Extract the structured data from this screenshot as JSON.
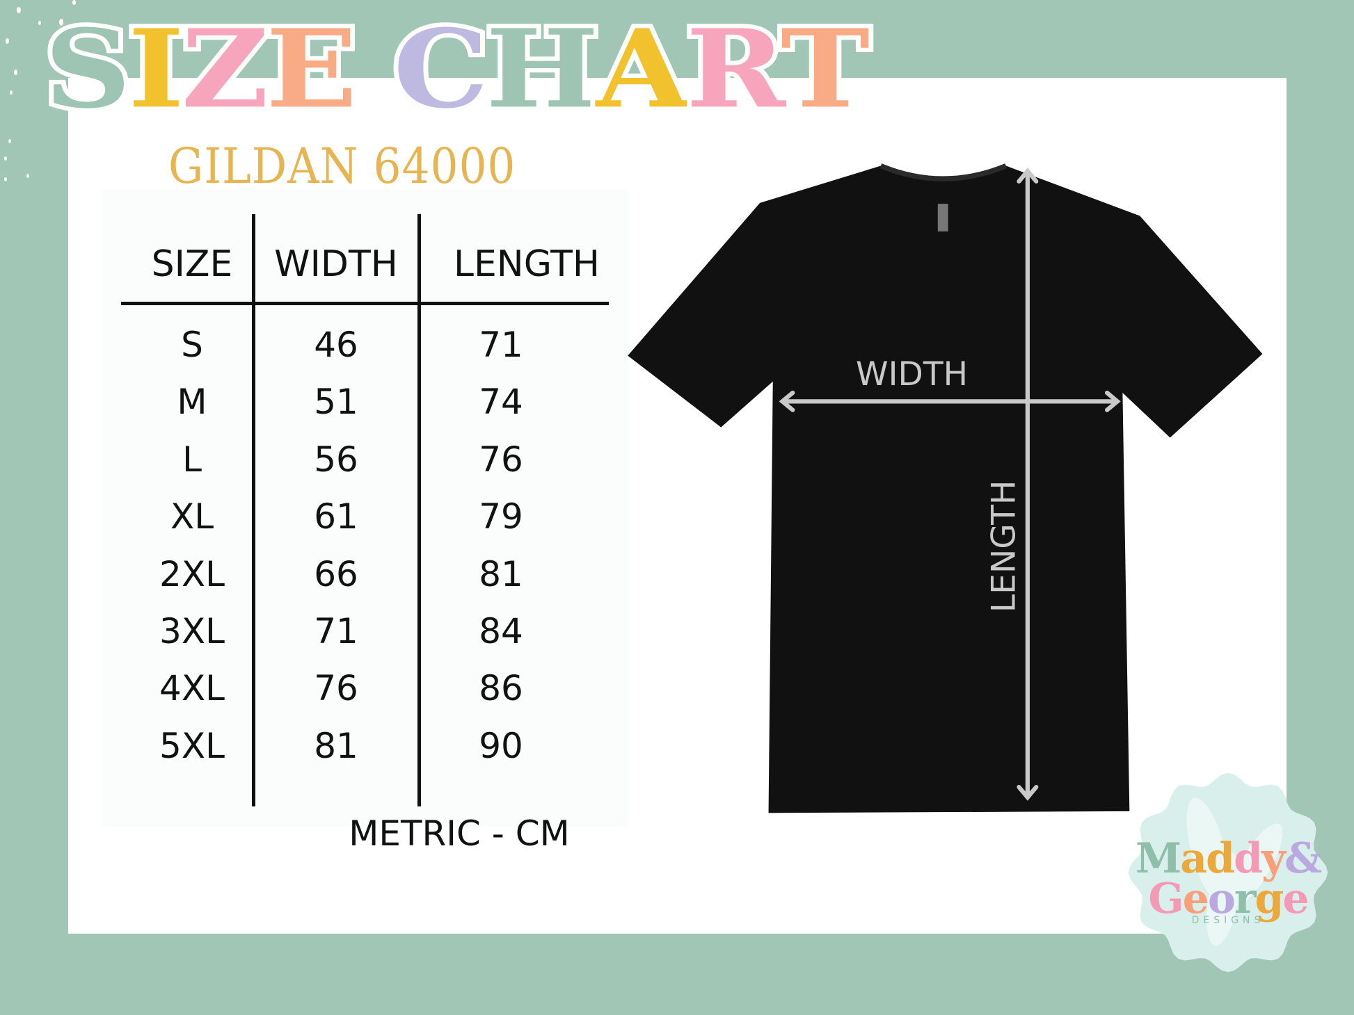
{
  "title": "SIZE CHART",
  "title_colors": [
    "#9ec4b4",
    "#f2c12e",
    "#f6a5bc",
    "#f8ab85",
    "#ffffff",
    "#bdb9e0",
    "#9ec4b4",
    "#f2c12e",
    "#f6a5bc",
    "#f8ab85"
  ],
  "subtitle": "GILDAN 64000",
  "table": {
    "headers": [
      "SIZE",
      "WIDTH",
      "LENGTH"
    ],
    "rows": [
      [
        "S",
        "46",
        "71"
      ],
      [
        "M",
        "51",
        "74"
      ],
      [
        "L",
        "56",
        "76"
      ],
      [
        "XL",
        "61",
        "79"
      ],
      [
        "2XL",
        "66",
        "81"
      ],
      [
        "3XL",
        "71",
        "84"
      ],
      [
        "4XL",
        "76",
        "86"
      ],
      [
        "5XL",
        "81",
        "90"
      ]
    ],
    "unit_note": "METRIC - CM"
  },
  "diagram": {
    "width_label": "WIDTH",
    "length_label": "LENGTH",
    "shirt_color": "#111111",
    "arrow_color": "#c9c9c9"
  },
  "logo": {
    "line1": "Maddy&",
    "line2": "George",
    "line3": "DESIGNS",
    "line1_colors": [
      "#8fbfab",
      "#eaa93a",
      "#eaa93a",
      "#f49ab6",
      "#f8a07a",
      "#b9a9e0"
    ],
    "line2_colors": [
      "#f49ab6",
      "#f8a07a",
      "#b9a9e0",
      "#8fbfab",
      "#eaa93a",
      "#f49ab6"
    ]
  },
  "colors": {
    "background": "#a1c6b5",
    "panel": "#ffffff",
    "subtitle": "#e6b552"
  }
}
